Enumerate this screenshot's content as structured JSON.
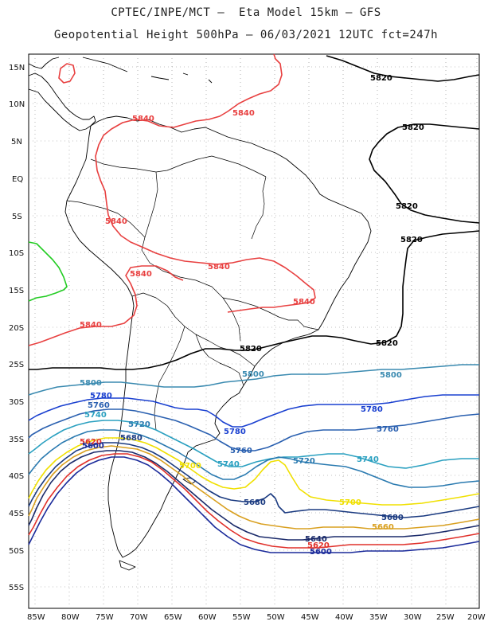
{
  "title_line1": "CPTEC/INPE/MCT –  Eta Model 15km – GFS",
  "title_line2": "Geopotential Height 500hPa – 06/03/2021 12UTC fct=247h",
  "lat_labels": [
    "15N",
    "10N",
    "5N",
    "EQ",
    "5S",
    "10S",
    "15S",
    "20S",
    "25S",
    "30S",
    "35S",
    "40S",
    "45S",
    "50S",
    "55S"
  ],
  "lon_labels": [
    "85W",
    "80W",
    "75W",
    "70W",
    "65W",
    "60W",
    "55W",
    "50W",
    "45W",
    "40W",
    "35W",
    "30W",
    "25W",
    "20W"
  ],
  "colors": {
    "c5520": "#0b1b6e",
    "c5560": "#e0302a",
    "c5580": "#1a2a9a",
    "c5620": "#e0302a",
    "c5640": "#1a2a6a",
    "c5660": "#d9a020",
    "c5680": "#1a3a80",
    "c5700": "#f0e000",
    "c5720": "#2a7ab0",
    "c5740": "#2aa0c0",
    "c5760": "#2a60b0",
    "c5780": "#1a40d0",
    "c5800": "#3a8ab0",
    "c5820": "#000000",
    "c5840": "#e84040",
    "c5860": "#22cc22",
    "coast": "#000000"
  },
  "contour_labels": [
    {
      "text": "5820",
      "color": "#000000"
    },
    {
      "text": "5820",
      "color": "#000000"
    },
    {
      "text": "5820",
      "color": "#000000"
    },
    {
      "text": "5820",
      "color": "#000000"
    },
    {
      "text": "5820",
      "color": "#000000"
    },
    {
      "text": "5820",
      "color": "#000000"
    },
    {
      "text": "5840",
      "color": "#e84040"
    },
    {
      "text": "5840",
      "color": "#e84040"
    },
    {
      "text": "5840",
      "color": "#e84040"
    },
    {
      "text": "5840",
      "color": "#e84040"
    },
    {
      "text": "5840",
      "color": "#e84040"
    },
    {
      "text": "5840",
      "color": "#e84040"
    },
    {
      "text": "5840",
      "color": "#e84040"
    },
    {
      "text": "5800",
      "color": "#3a8ab0"
    },
    {
      "text": "5800",
      "color": "#3a8ab0"
    },
    {
      "text": "5800",
      "color": "#3a8ab0"
    },
    {
      "text": "5780",
      "color": "#1a40d0"
    },
    {
      "text": "5780",
      "color": "#1a40d0"
    },
    {
      "text": "5780",
      "color": "#1a40d0"
    },
    {
      "text": "5760",
      "color": "#2a60b0"
    },
    {
      "text": "5760",
      "color": "#2a60b0"
    },
    {
      "text": "5760",
      "color": "#2a60b0"
    },
    {
      "text": "5740",
      "color": "#2aa0c0"
    },
    {
      "text": "5740",
      "color": "#2aa0c0"
    },
    {
      "text": "5740",
      "color": "#2aa0c0"
    },
    {
      "text": "5720",
      "color": "#2a7ab0"
    },
    {
      "text": "5720",
      "color": "#2a7ab0"
    },
    {
      "text": "5700",
      "color": "#f0e000"
    },
    {
      "text": "5700",
      "color": "#f0e000"
    },
    {
      "text": "5680",
      "color": "#1a3a80"
    },
    {
      "text": "5680",
      "color": "#1a3a80"
    },
    {
      "text": "5680",
      "color": "#1a3a80"
    },
    {
      "text": "5660",
      "color": "#d9a020"
    },
    {
      "text": "5640",
      "color": "#1a2a6a"
    },
    {
      "text": "5620",
      "color": "#e0302a"
    },
    {
      "text": "5620",
      "color": "#e0302a"
    },
    {
      "text": "5600",
      "color": "#1a2a9a"
    },
    {
      "text": "5600",
      "color": "#1a2a9a"
    }
  ]
}
